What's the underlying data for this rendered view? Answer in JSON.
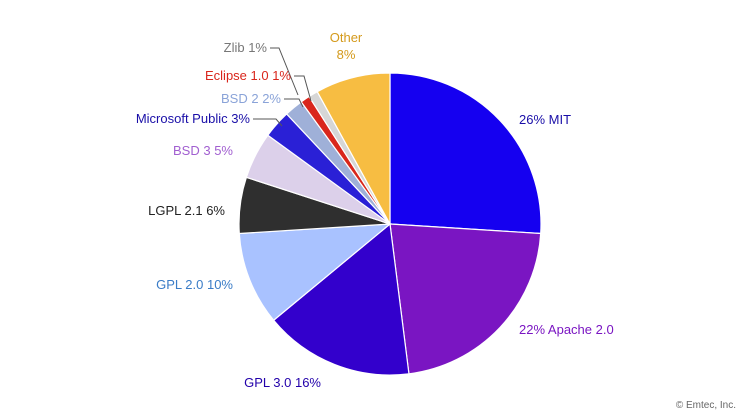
{
  "credit": "© Emtec, Inc.",
  "chart_data": {
    "type": "pie",
    "start_angle_deg": 0,
    "direction": "clockwise",
    "slices": [
      {
        "name": "MIT",
        "value": 26,
        "label": "26%  MIT",
        "color": "#1500f0",
        "text_color": "#1a0fa8"
      },
      {
        "name": "Apache 2.0",
        "value": 22,
        "label": "22%  Apache 2.0",
        "color": "#7a15c2",
        "text_color": "#7a15c2"
      },
      {
        "name": "GPL 3.0",
        "value": 16,
        "label": "GPL 3.0  16%",
        "color": "#3300cc",
        "text_color": "#2200aa"
      },
      {
        "name": "GPL 2.0",
        "value": 10,
        "label": "GPL 2.0  10%",
        "color": "#a9c2ff",
        "text_color": "#3a7cc7"
      },
      {
        "name": "LGPL 2.1",
        "value": 6,
        "label": "LGPL 2.1   6%",
        "color": "#2f2f2f",
        "text_color": "#222222"
      },
      {
        "name": "BSD 3",
        "value": 5,
        "label": "BSD 3   5%",
        "color": "#dcd0ea",
        "text_color": "#a15fd0"
      },
      {
        "name": "Microsoft Public",
        "value": 3,
        "label": "Microsoft Public   3%",
        "color": "#2a20d6",
        "text_color": "#1a0fa8"
      },
      {
        "name": "BSD 2",
        "value": 2,
        "label": "BSD 2   2%",
        "color": "#9fb0d8",
        "text_color": "#8aa3d8"
      },
      {
        "name": "Eclipse 1.0",
        "value": 1,
        "label": "Eclipse 1.0  1%",
        "color": "#d9261c",
        "text_color": "#d9261c"
      },
      {
        "name": "Zlib",
        "value": 1,
        "label": "Zlib 1%",
        "color": "#d6d6d6",
        "text_color": "#777777"
      },
      {
        "name": "Other",
        "value": 8,
        "label": "Other\n8%",
        "color": "#f7bd42",
        "text_color": "#d49a1c"
      }
    ]
  }
}
